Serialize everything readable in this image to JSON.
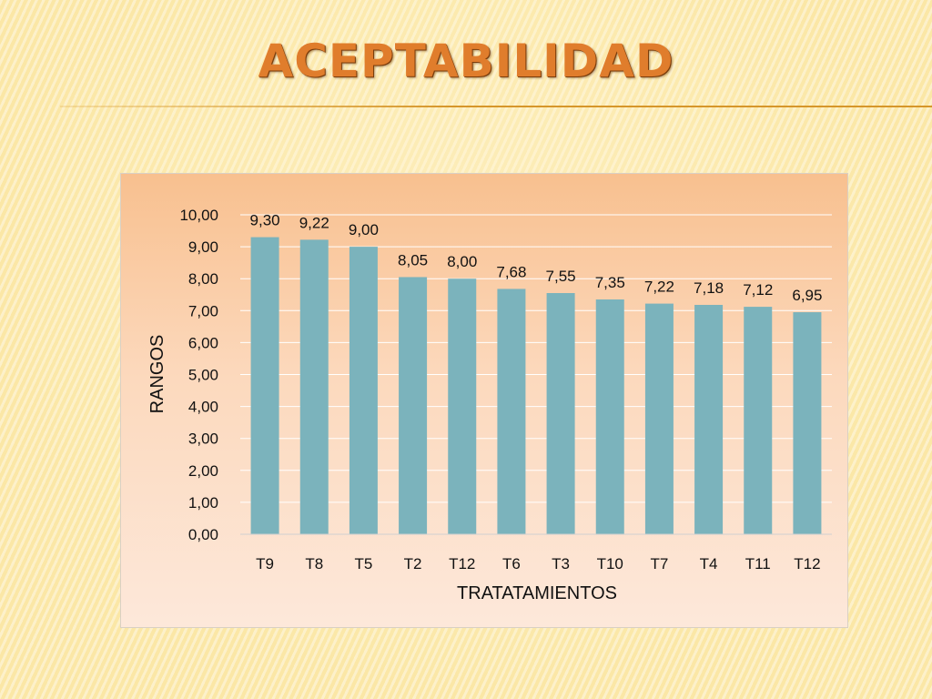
{
  "slide": {
    "title": "ACEPTABILIDAD"
  },
  "chart_data": {
    "type": "bar",
    "title": "",
    "xlabel": "TRATATAMIENTOS",
    "ylabel": "RANGOS",
    "ylim": [
      0,
      10
    ],
    "ytick_step": 1,
    "yticks": [
      "0,00",
      "1,00",
      "2,00",
      "3,00",
      "4,00",
      "5,00",
      "6,00",
      "7,00",
      "8,00",
      "9,00",
      "10,00"
    ],
    "categories": [
      "T9",
      "T8",
      "T5",
      "T2",
      "T12",
      "T6",
      "T3",
      "T10",
      "T7",
      "T4",
      "T11",
      "T12"
    ],
    "values": [
      9.3,
      9.22,
      9.0,
      8.05,
      8.0,
      7.68,
      7.55,
      7.35,
      7.22,
      7.18,
      7.12,
      6.95
    ],
    "data_labels": [
      "9,30",
      "9,22",
      "9,00",
      "8,05",
      "8,00",
      "7,68",
      "7,55",
      "7,35",
      "7,22",
      "7,18",
      "7,12",
      "6,95"
    ],
    "grid": true,
    "legend": false,
    "colors": {
      "bar": "#7bb3bc",
      "gridline": "#ffffff",
      "axis": "#d0d0d0"
    }
  }
}
